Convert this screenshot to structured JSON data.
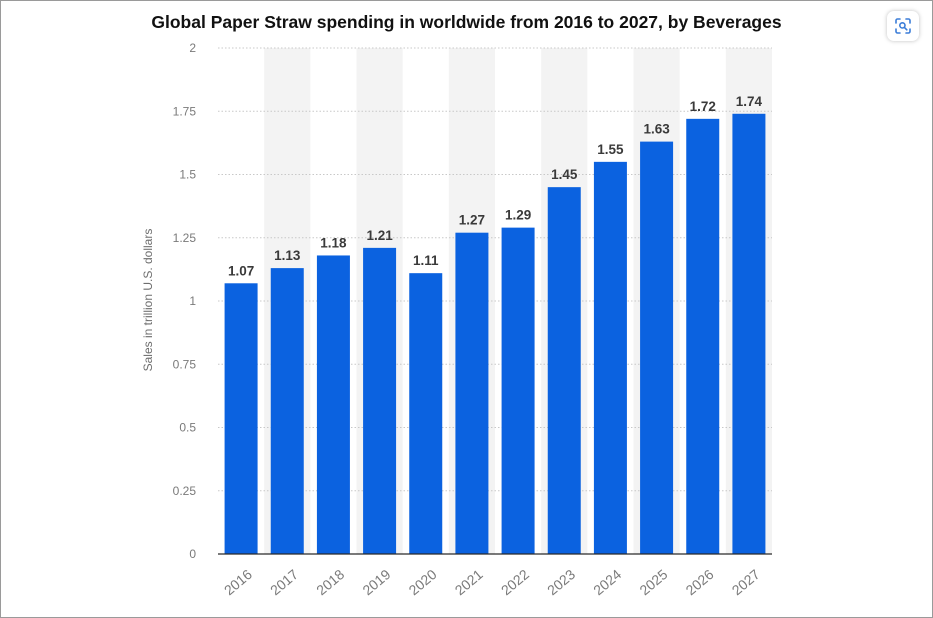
{
  "colors": {
    "bar": "#0b62e0",
    "grid": "#c8c8c8",
    "stripe": "#f3f3f3",
    "tick_text": "#7a7a7a",
    "value_text": "#3a3a3a"
  },
  "toolbar": {
    "scan_icon": "scan-text-icon"
  },
  "chart_data": {
    "type": "bar",
    "title": "Global Paper Straw spending in worldwide from 2016 to 2027, by Beverages",
    "xlabel": "",
    "ylabel": "Sales in trillion U.S. dollars",
    "categories": [
      "2016",
      "2017",
      "2018",
      "2019",
      "2020",
      "2021",
      "2022",
      "2023",
      "2024",
      "2025",
      "2026",
      "2027"
    ],
    "values": [
      1.07,
      1.13,
      1.18,
      1.21,
      1.11,
      1.27,
      1.29,
      1.45,
      1.55,
      1.63,
      1.72,
      1.74
    ],
    "value_labels": [
      "1.07",
      "1.13",
      "1.18",
      "1.21",
      "1.11",
      "1.27",
      "1.29",
      "1.45",
      "1.55",
      "1.63",
      "1.72",
      "1.74"
    ],
    "yticks": [
      "0",
      "0.25",
      "0.5",
      "0.75",
      "1",
      "1.25",
      "1.5",
      "1.75",
      "2"
    ],
    "ylim": [
      0,
      2
    ],
    "grid": true,
    "legend": "none"
  }
}
